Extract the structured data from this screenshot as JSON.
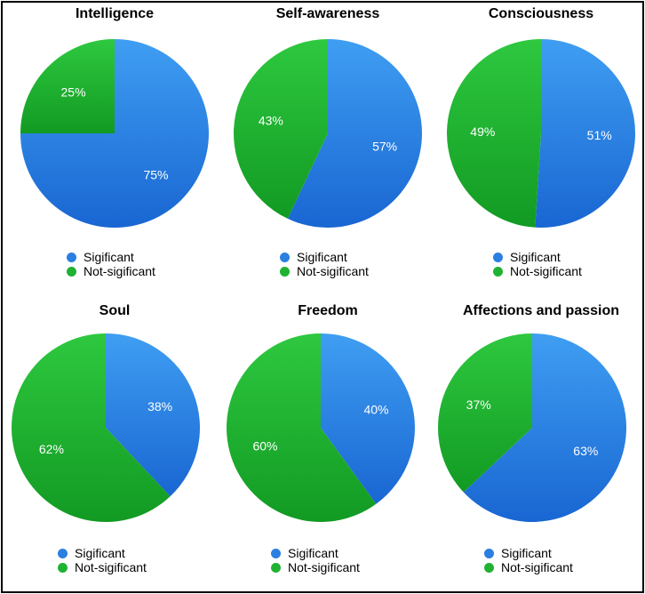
{
  "colors": {
    "significant": "#2b7fe0",
    "not_significant": "#20b233"
  },
  "legend": {
    "significant": "Sigificant",
    "not_significant": "Not-sigificant"
  },
  "chart_data": [
    {
      "type": "pie",
      "title": "Intelligence",
      "categories": [
        "Sigificant",
        "Not-sigificant"
      ],
      "values": [
        75,
        25
      ],
      "labels": [
        "75%",
        "25%"
      ]
    },
    {
      "type": "pie",
      "title": "Self-awareness",
      "categories": [
        "Sigificant",
        "Not-sigificant"
      ],
      "values": [
        57,
        43
      ],
      "labels": [
        "57%",
        "43%"
      ]
    },
    {
      "type": "pie",
      "title": "Consciousness",
      "categories": [
        "Sigificant",
        "Not-sigificant"
      ],
      "values": [
        51,
        49
      ],
      "labels": [
        "51%",
        "49%"
      ]
    },
    {
      "type": "pie",
      "title": "Soul",
      "categories": [
        "Sigificant",
        "Not-sigificant"
      ],
      "values": [
        38,
        62
      ],
      "labels": [
        "38%",
        "62%"
      ]
    },
    {
      "type": "pie",
      "title": "Freedom",
      "categories": [
        "Sigificant",
        "Not-sigificant"
      ],
      "values": [
        40,
        60
      ],
      "labels": [
        "40%",
        "60%"
      ]
    },
    {
      "type": "pie",
      "title": "Affections and passion",
      "categories": [
        "Sigificant",
        "Not-sigificant"
      ],
      "values": [
        63,
        37
      ],
      "labels": [
        "63%",
        "37%"
      ]
    }
  ]
}
